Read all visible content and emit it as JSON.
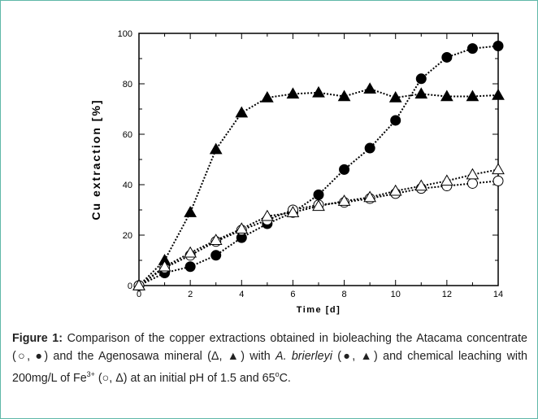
{
  "chart_data": {
    "type": "line",
    "x": [
      0,
      1,
      2,
      3,
      4,
      5,
      6,
      7,
      8,
      9,
      10,
      11,
      12,
      13,
      14
    ],
    "series": [
      {
        "marker": "circle-filled",
        "color": "#000000",
        "values": [
          0,
          5,
          7.5,
          12,
          19,
          24.5,
          29,
          36,
          46,
          54.5,
          65.5,
          82,
          90.5,
          94,
          95
        ]
      },
      {
        "marker": "circle-open",
        "color": "#000000",
        "values": [
          0,
          7,
          12,
          17.5,
          22,
          26,
          30,
          32,
          33,
          34.5,
          36.5,
          38.5,
          39.5,
          40.5,
          41.5
        ]
      },
      {
        "marker": "triangle-filled",
        "color": "#000000",
        "values": [
          0,
          10,
          29,
          54,
          68.5,
          74.5,
          76,
          76.5,
          75,
          78,
          74.5,
          76,
          75,
          75,
          75.5
        ]
      },
      {
        "marker": "triangle-open",
        "color": "#000000",
        "values": [
          0,
          7.5,
          13,
          18,
          22.5,
          27.5,
          29,
          31.5,
          33.5,
          35,
          37.5,
          39.5,
          41.5,
          44,
          46
        ]
      }
    ],
    "xlabel": "Time [d]",
    "ylabel": "Cu extraction [%]",
    "xlim": [
      0,
      14
    ],
    "xticks": [
      0,
      2,
      4,
      6,
      8,
      10,
      12,
      14
    ],
    "xminorticks": [
      1,
      3,
      5,
      7,
      9,
      11,
      13
    ],
    "ylim": [
      0,
      100
    ],
    "yticks": [
      0,
      20,
      40,
      60,
      80,
      100
    ],
    "yminorticks": [
      10,
      30,
      50,
      70,
      90
    ],
    "grid": false
  },
  "caption": {
    "label": "Figure 1:",
    "text_1": " Comparison of the copper extractions obtained in bioleaching the Atacama concentrate (○, ●) and the Agenosawa mineral (Δ, ▲) with ",
    "species": "A. brierleyi",
    "text_2": " (●, ▲) and chemical leaching with 200mg/L of Fe",
    "sup_1": "3+",
    "text_3": " (○, Δ) at an initial pH of 1.5 and 65",
    "sup_2": "o",
    "text_4": "C."
  }
}
